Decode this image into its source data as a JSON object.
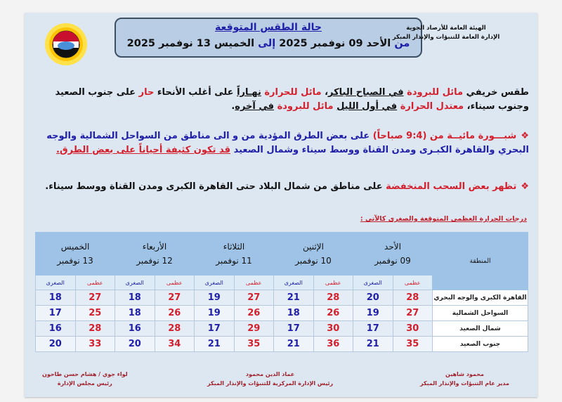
{
  "header": {
    "org_line1": "الهيئة العامة للأرصاد الجوية",
    "org_line2": "الإدارة العامة للتنبؤات والإنذار المبكر",
    "logo_text": "EMA",
    "title": "حالة الطقس المتوقعة",
    "period": {
      "from": "من",
      "start": "الأحد 09 نوفمبر 2025",
      "to": "إلى",
      "end": "الخميس 13 نوفمبر 2025"
    }
  },
  "summary": [
    "طقس خريفي ",
    "مائل للبرودة",
    " ",
    "في الصباح الباكر",
    "، ",
    "مائل للحرارة",
    " ",
    "نهـاراً",
    " على أغلب الأنحاء ",
    "حار",
    " على جنوب الصعيد وجنوب سيناء، ",
    "معتدل الحرارة",
    " ",
    "في أول الليل",
    " ",
    "مائل للبرودة",
    " ",
    "في آخره",
    "."
  ],
  "bullets": [
    {
      "icon": "diamond-bullet-icon",
      "parts": [
        "شبـــورة مائيــة من (9:4 صباحاً)",
        " على بعض الطرق المؤدية من و الى مناطق من السواحل الشمالية والوجه البحري والقاهرة الكبـرى ومدن القناة ووسط سيناء وشمال الصعيد ",
        "قد تكون كثيفة أحياناً على بعض الطرق."
      ]
    },
    {
      "icon": "diamond-bullet-icon",
      "parts": [
        "تظهر بعض السحب المنخفضة",
        " على مناطق من شمال البلاد حتى القاهرة الكبرى ومدن القناة ووسط سيناء."
      ]
    }
  ],
  "table": {
    "caption": "درجات الحرارة العظمى المتوقعة والصغرى كالآتي :",
    "region_header": "المنطقة",
    "max_label": "عظمى",
    "min_label": "الصغرى",
    "days": [
      {
        "day": "الأحد",
        "date": "09  نوفمبر"
      },
      {
        "day": "الإثنين",
        "date": "10  نوفمبر"
      },
      {
        "day": "الثلاثاء",
        "date": "11  نوفمبر"
      },
      {
        "day": "الأربعاء",
        "date": "12  نوفمبر"
      },
      {
        "day": "الخميس",
        "date": "13  نوفمبر"
      }
    ],
    "rows": [
      {
        "region": "القاهرة الكبرى والوجه البحري",
        "temps": [
          [
            28,
            20
          ],
          [
            28,
            21
          ],
          [
            27,
            19
          ],
          [
            27,
            18
          ],
          [
            27,
            18
          ]
        ]
      },
      {
        "region": "السواحل الشمالية",
        "temps": [
          [
            27,
            19
          ],
          [
            26,
            18
          ],
          [
            26,
            19
          ],
          [
            26,
            18
          ],
          [
            25,
            17
          ]
        ]
      },
      {
        "region": "شمال الصعيد",
        "temps": [
          [
            30,
            17
          ],
          [
            30,
            17
          ],
          [
            29,
            17
          ],
          [
            28,
            16
          ],
          [
            28,
            16
          ]
        ]
      },
      {
        "region": "جنوب الصعيد",
        "temps": [
          [
            35,
            21
          ],
          [
            36,
            21
          ],
          [
            35,
            21
          ],
          [
            34,
            20
          ],
          [
            33,
            20
          ]
        ]
      }
    ]
  },
  "signatures": [
    {
      "name": "محمود شاهين",
      "title": "مدير عام التنبؤات والإنذار المبكر"
    },
    {
      "name": "عماد الدين محمود",
      "title": "رئيس الإدارة المركزية للتنبؤات والإنذار المبكر"
    },
    {
      "name": "لواء جوي / هشام حسن طاحون",
      "title": "رئيس مجلس الإدارة"
    }
  ],
  "colors": {
    "panel": "#dde7f2",
    "title_box": "#b9cde5",
    "table_header": "#9ec3e6",
    "red": "#d4202c",
    "blue": "#1f1fa8"
  }
}
